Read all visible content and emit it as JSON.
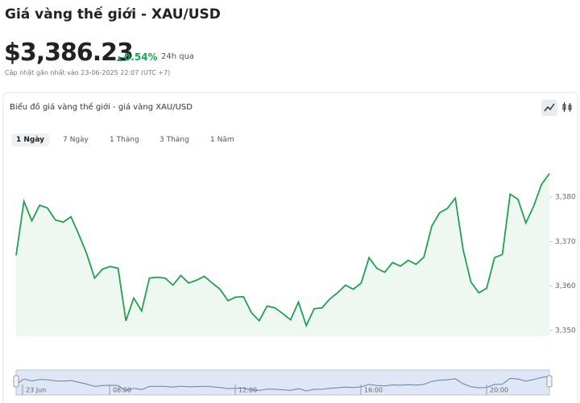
{
  "header": {
    "title": "Giá vàng thế giới - XAU/USD",
    "price": "$3,386.23",
    "change": "0.54%",
    "change_period": "24h qua",
    "updated": "Cập nhật gần nhất vào 23-06-2025 22:07 (UTC +7)"
  },
  "card": {
    "title": "Biểu đồ giá vàng thế giới - giá vàng XAU/USD",
    "tabs": [
      "1 Ngày",
      "7 Ngày",
      "1 Tháng",
      "3 Tháng",
      "1 Năm"
    ]
  },
  "chart_data": {
    "type": "area",
    "color": "#22a052",
    "values": [
      3366.9,
      3379.1,
      3374.7,
      3378.2,
      3377.6,
      3374.9,
      3374.4,
      3375.6,
      3371.6,
      3367.3,
      3361.8,
      3363.8,
      3364.4,
      3364.0,
      3352.2,
      3357.3,
      3354.4,
      3361.8,
      3362.0,
      3361.8,
      3360.2,
      3362.4,
      3360.7,
      3361.3,
      3362.2,
      3360.7,
      3359.3,
      3356.7,
      3357.5,
      3357.6,
      3354.0,
      3352.2,
      3355.5,
      3355.1,
      3353.8,
      3352.4,
      3356.4,
      3351.1,
      3354.9,
      3355.1,
      3357.1,
      3358.5,
      3360.2,
      3359.3,
      3360.7,
      3366.4,
      3364.0,
      3363.1,
      3365.3,
      3364.5,
      3365.8,
      3364.9,
      3366.5,
      3373.5,
      3376.5,
      3377.5,
      3379.8,
      3368.2,
      3360.9,
      3358.5,
      3359.5,
      3366.4,
      3367.1,
      3380.7,
      3379.5,
      3374.2,
      3378.0,
      3382.9,
      3385.3
    ],
    "ylim": [
      3348.7,
      3390
    ],
    "yticks": [
      {
        "value": 3350,
        "label": "3,350"
      },
      {
        "value": 3360,
        "label": "3,360"
      },
      {
        "value": 3370,
        "label": "3,370"
      },
      {
        "value": 3380,
        "label": "3,380"
      }
    ],
    "navigator": {
      "labels": [
        "23 Jun",
        "08:00",
        "12:00",
        "16:00",
        "20:00"
      ]
    }
  }
}
